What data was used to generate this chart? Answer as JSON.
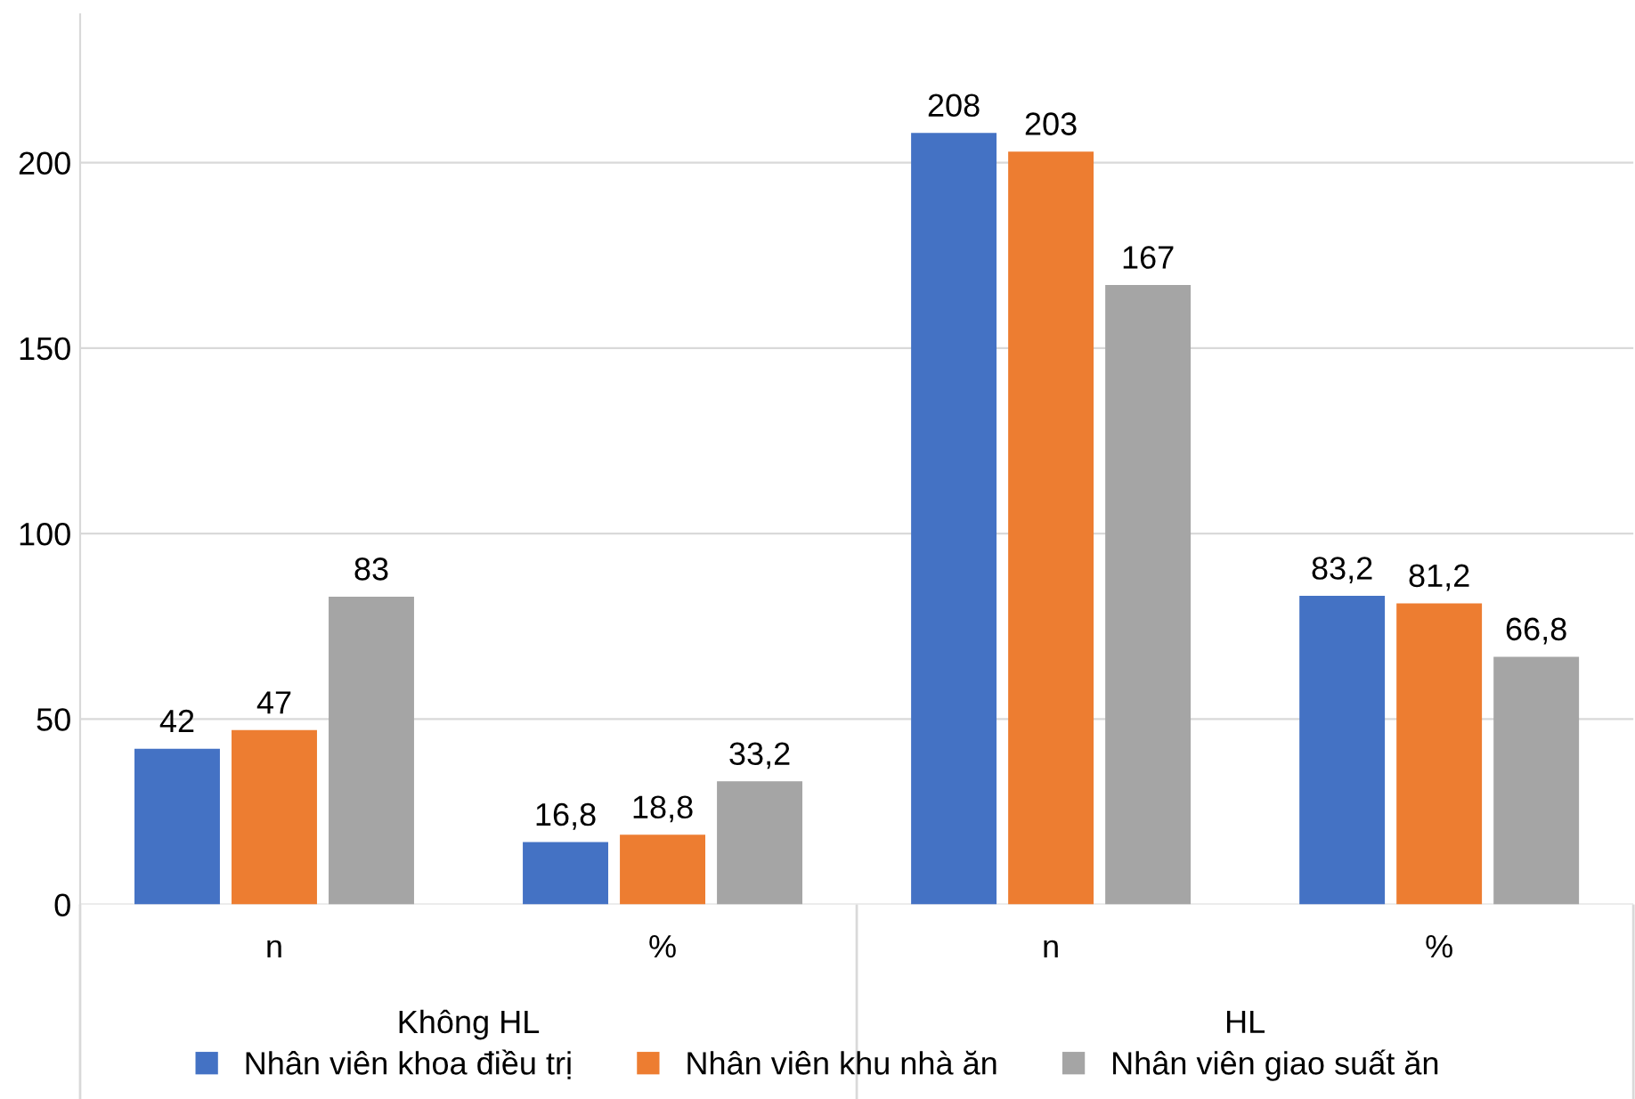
{
  "chart_data": {
    "type": "bar",
    "categories": [
      "n",
      "%",
      "n",
      "%"
    ],
    "series": [
      {
        "name": "Nhân viên khoa điều trị",
        "color": "#4472c4",
        "values": [
          42,
          16.8,
          208,
          83.2
        ],
        "value_labels": [
          "42",
          "16,8",
          "208",
          "83,2"
        ]
      },
      {
        "name": "Nhân viên khu nhà ăn",
        "color": "#ed7d31",
        "values": [
          47,
          18.8,
          203,
          81.2
        ],
        "value_labels": [
          "47",
          "18,8",
          "203",
          "81,2"
        ]
      },
      {
        "name": "Nhân viên giao suất ăn",
        "color": "#a5a5a5",
        "values": [
          83,
          33.2,
          167,
          66.8
        ],
        "value_labels": [
          "83",
          "33,2",
          "167",
          "66,8"
        ]
      }
    ],
    "annotations": [
      "Không HL",
      "HL"
    ],
    "ylim": [
      0,
      240
    ],
    "yticks": [
      0,
      50,
      100,
      150,
      200
    ],
    "grid": "y",
    "legend": "bottom"
  }
}
